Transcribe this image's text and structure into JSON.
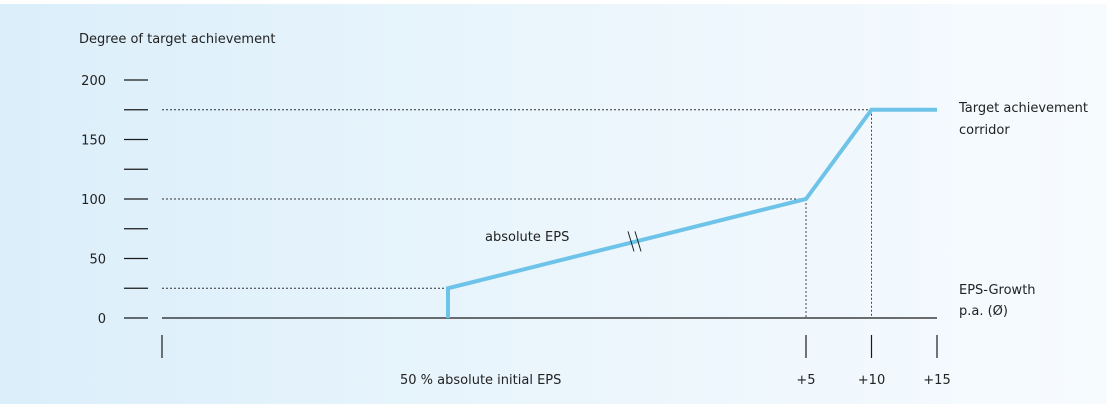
{
  "chart_data": {
    "type": "line",
    "ylabel": "Degree of target achievement",
    "y_ticks": [
      0,
      25,
      50,
      75,
      100,
      125,
      150,
      175,
      200
    ],
    "y_tick_labels": [
      {
        "value": 0,
        "label": "0"
      },
      {
        "value": 50,
        "label": "50"
      },
      {
        "value": 100,
        "label": "100"
      },
      {
        "value": 150,
        "label": "150"
      },
      {
        "value": 200,
        "label": "200"
      }
    ],
    "ylim": [
      0,
      200
    ],
    "x_ticks": [
      {
        "value": -15,
        "label": ""
      },
      {
        "value": 5,
        "label": "+5"
      },
      {
        "value": 10,
        "label": "+10"
      },
      {
        "value": 15,
        "label": "+15"
      }
    ],
    "x_category_label": "50 % absolute initial EPS",
    "xlim": [
      -15,
      15
    ],
    "series": [
      {
        "points": [
          {
            "x": 7,
            "y": 0
          },
          {
            "x": 7,
            "y": 25
          },
          {
            "x": 5,
            "y": 100
          },
          {
            "x": 10,
            "y": 175
          },
          {
            "x": 15,
            "y": 175
          }
        ],
        "color": "#6ec3e8"
      }
    ],
    "reference_lines": [
      {
        "y": 25,
        "to_x": 7
      },
      {
        "y": 100,
        "to_x": 5
      },
      {
        "y": 175,
        "to_x": 10
      }
    ],
    "vertical_reference_lines": [
      5,
      10
    ],
    "axis_break_marker": "//",
    "annotations": {
      "segment_label": "absolute EPS",
      "corridor_label": [
        "Target achievement",
        "corridor"
      ],
      "x_axis_label": [
        "EPS-Growth",
        "p.a. (Ø)"
      ]
    },
    "grid": false
  }
}
